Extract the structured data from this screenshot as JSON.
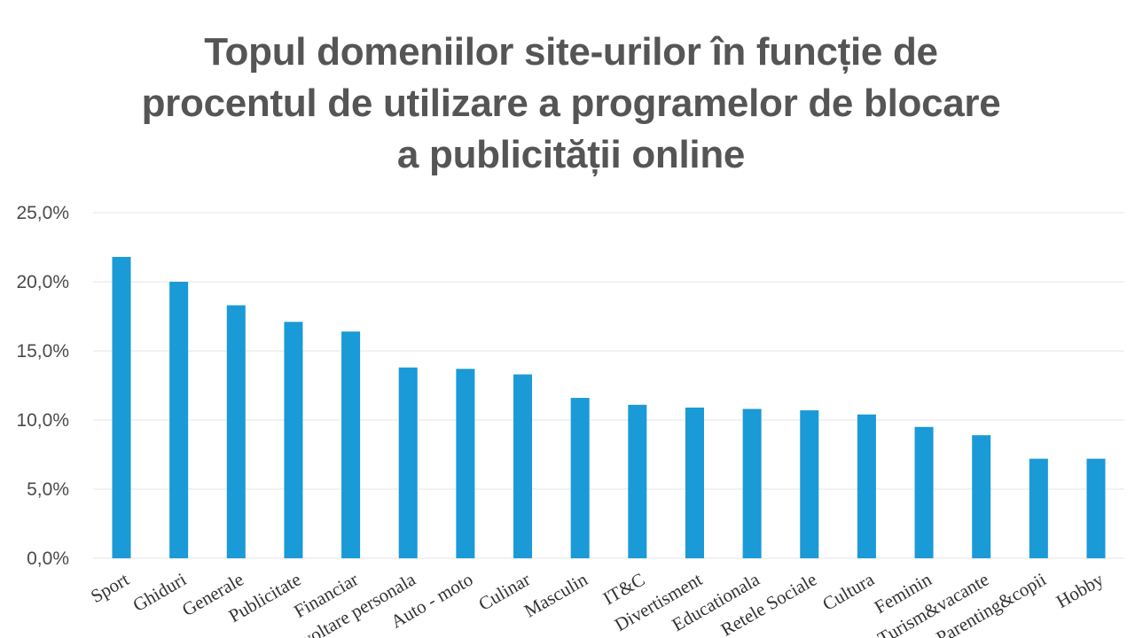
{
  "chart_data": {
    "type": "bar",
    "title_lines": [
      "Topul domeniilor site-urilor în funcție de",
      "procentul de utilizare a programelor de blocare",
      "a publicității online"
    ],
    "categories": [
      "Sport",
      "Ghiduri",
      "Generale",
      "Publicitate",
      "Financiar",
      "Dezvoltare personala",
      "Auto - moto",
      "Culinar",
      "Masculin",
      "IT&C",
      "Divertisment",
      "Educationala",
      "Retele Sociale",
      "Cultura",
      "Feminin",
      "Turism&vacante",
      "Parenting&copii",
      "Hobby"
    ],
    "values": [
      21.8,
      20.0,
      18.3,
      17.1,
      16.4,
      13.8,
      13.7,
      13.3,
      11.6,
      11.1,
      10.9,
      10.8,
      10.7,
      10.4,
      9.5,
      8.9,
      7.2,
      7.2
    ],
    "ylim": [
      0,
      25
    ],
    "yticks": [
      0,
      5,
      10,
      15,
      20,
      25
    ],
    "ytick_labels": [
      "0,0%",
      "5,0%",
      "10,0%",
      "15,0%",
      "20,0%",
      "25,0%"
    ],
    "xlabel": "",
    "ylabel": "",
    "grid": true,
    "legend": "none",
    "bar_color": "#1a9ad6",
    "grid_color": "#e6e6e6"
  }
}
